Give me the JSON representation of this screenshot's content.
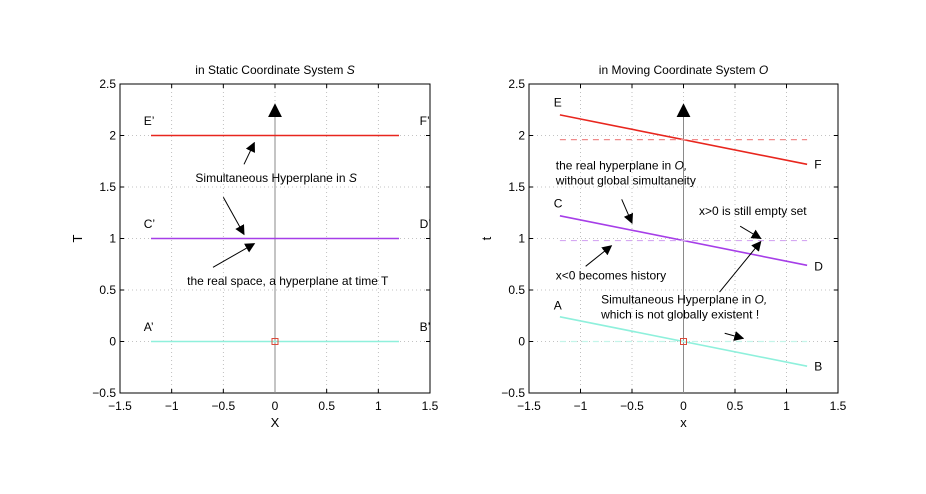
{
  "chart_data": [
    {
      "type": "line",
      "title": "in Static Coordinate System",
      "title_symbol": "S",
      "xlabel": "X",
      "ylabel": "T",
      "xlim": [
        -1.5,
        1.5
      ],
      "ylim": [
        -0.5,
        2.5
      ],
      "xticks": [
        -1.5,
        -1,
        -0.5,
        0,
        0.5,
        1,
        1.5
      ],
      "xtick_labels": [
        "−1.5",
        "−1",
        "−0.5",
        "0",
        "0.5",
        "1",
        "1.5"
      ],
      "yticks": [
        -0.5,
        0,
        0.5,
        1,
        1.5,
        2,
        2.5
      ],
      "ytick_labels": [
        "−0.5",
        "0",
        "0.5",
        "1",
        "1.5",
        "2",
        "2.5"
      ],
      "grid": true,
      "series": [
        {
          "x": [
            -1.2,
            1.2
          ],
          "y": [
            2,
            2
          ],
          "color": "#e8261e",
          "dash": false
        },
        {
          "x": [
            -1.2,
            1.2
          ],
          "y": [
            1,
            1
          ],
          "color": "#a63ee8",
          "dash": false
        },
        {
          "x": [
            -1.2,
            1.2
          ],
          "y": [
            0,
            0
          ],
          "color": "#8ff0dc",
          "dash": false
        }
      ],
      "time_axis": {
        "x": 0,
        "from": -0.5,
        "to": 2.3
      },
      "origin_marker": {
        "x": 0,
        "y": 0,
        "color": "#d94a3a"
      },
      "point_labels": [
        {
          "text": "E’",
          "x": -1.27,
          "y": 2.1
        },
        {
          "text": "F’",
          "x": 1.4,
          "y": 2.1
        },
        {
          "text": "C’",
          "x": -1.27,
          "y": 1.1
        },
        {
          "text": "D’",
          "x": 1.4,
          "y": 1.1
        },
        {
          "text": "A’",
          "x": -1.27,
          "y": 0.1
        },
        {
          "text": "B’",
          "x": 1.4,
          "y": 0.1
        }
      ],
      "annotations": [
        {
          "lines": [
            {
              "text": "Simultaneous Hyperplane in  ",
              "symbol": "S"
            }
          ],
          "x": -0.77,
          "y": 1.55
        },
        {
          "lines": [
            {
              "text": "the real space, a hyperplane at time T",
              "symbol": ""
            }
          ],
          "x": -0.85,
          "y": 0.55
        }
      ],
      "arrows": [
        {
          "from": [
            -0.3,
            1.72
          ],
          "to": [
            -0.2,
            1.93
          ]
        },
        {
          "from": [
            -0.5,
            1.4
          ],
          "to": [
            -0.3,
            1.04
          ]
        },
        {
          "from": [
            -0.6,
            0.72
          ],
          "to": [
            -0.2,
            0.95
          ]
        }
      ]
    },
    {
      "type": "line",
      "title": "in Moving Coordinate System",
      "title_symbol": "O",
      "xlabel": "x",
      "ylabel": "t",
      "xlim": [
        -1.5,
        1.5
      ],
      "ylim": [
        -0.5,
        2.5
      ],
      "xticks": [
        -1.5,
        -1,
        -0.5,
        0,
        0.5,
        1,
        1.5
      ],
      "xtick_labels": [
        "−1.5",
        "−1",
        "−0.5",
        "0",
        "0.5",
        "1",
        "1.5"
      ],
      "yticks": [
        -0.5,
        0,
        0.5,
        1,
        1.5,
        2,
        2.5
      ],
      "ytick_labels": [
        "−0.5",
        "0",
        "0.5",
        "1",
        "1.5",
        "2",
        "2.5"
      ],
      "grid": true,
      "series": [
        {
          "x": [
            -1.2,
            1.2
          ],
          "y": [
            2.2,
            1.72
          ],
          "color": "#e8261e",
          "dash": false
        },
        {
          "x": [
            -1.2,
            1.2
          ],
          "y": [
            1.96,
            1.96
          ],
          "color": "#f08a8a",
          "dash": true
        },
        {
          "x": [
            -1.2,
            1.2
          ],
          "y": [
            1.22,
            0.74
          ],
          "color": "#a63ee8",
          "dash": false
        },
        {
          "x": [
            -1.2,
            1.2
          ],
          "y": [
            0.98,
            0.98
          ],
          "color": "#d5a8f2",
          "dash": true
        },
        {
          "x": [
            -1.2,
            1.2
          ],
          "y": [
            0.24,
            -0.24
          ],
          "color": "#8ff0dc",
          "dash": false
        },
        {
          "x": [
            -1.2,
            1.2
          ],
          "y": [
            0,
            0
          ],
          "color": "#c4f5ea",
          "dash": true
        }
      ],
      "time_axis": {
        "x": 0,
        "from": -0.5,
        "to": 2.3
      },
      "origin_marker": {
        "x": 0,
        "y": 0,
        "color": "#d94a3a"
      },
      "point_labels": [
        {
          "text": "E",
          "x": -1.26,
          "y": 2.28
        },
        {
          "text": "F",
          "x": 1.27,
          "y": 1.68
        },
        {
          "text": "C",
          "x": -1.26,
          "y": 1.3
        },
        {
          "text": "D",
          "x": 1.27,
          "y": 0.69
        },
        {
          "text": "A",
          "x": -1.26,
          "y": 0.31
        },
        {
          "text": "B",
          "x": 1.27,
          "y": -0.28
        }
      ],
      "annotations": [
        {
          "lines": [
            {
              "text": "the real hyperplane  in  ",
              "symbol": "O,"
            },
            {
              "text": "without global simultaneity",
              "symbol": ""
            }
          ],
          "x": -1.24,
          "y": 1.67
        },
        {
          "lines": [
            {
              "text": "x>0 is still empty set",
              "symbol": ""
            }
          ],
          "x": 0.15,
          "y": 1.23
        },
        {
          "lines": [
            {
              "text": "x<0 becomes history",
              "symbol": ""
            }
          ],
          "x": -1.24,
          "y": 0.6
        },
        {
          "lines": [
            {
              "text": "Simultaneous Hyperplane in  ",
              "symbol": "O,"
            },
            {
              "text": "which is not globally existent !",
              "symbol": ""
            }
          ],
          "x": -0.8,
          "y": 0.37
        }
      ],
      "arrows": [
        {
          "from": [
            -0.6,
            1.38
          ],
          "to": [
            -0.5,
            1.15
          ]
        },
        {
          "from": [
            0.55,
            1.12
          ],
          "to": [
            0.75,
            1.0
          ]
        },
        {
          "from": [
            -0.95,
            0.73
          ],
          "to": [
            -0.7,
            0.93
          ]
        },
        {
          "from": [
            0.35,
            0.48
          ],
          "to": [
            0.75,
            0.97
          ]
        },
        {
          "from": [
            0.4,
            0.08
          ],
          "to": [
            0.58,
            0.03
          ]
        }
      ]
    }
  ]
}
